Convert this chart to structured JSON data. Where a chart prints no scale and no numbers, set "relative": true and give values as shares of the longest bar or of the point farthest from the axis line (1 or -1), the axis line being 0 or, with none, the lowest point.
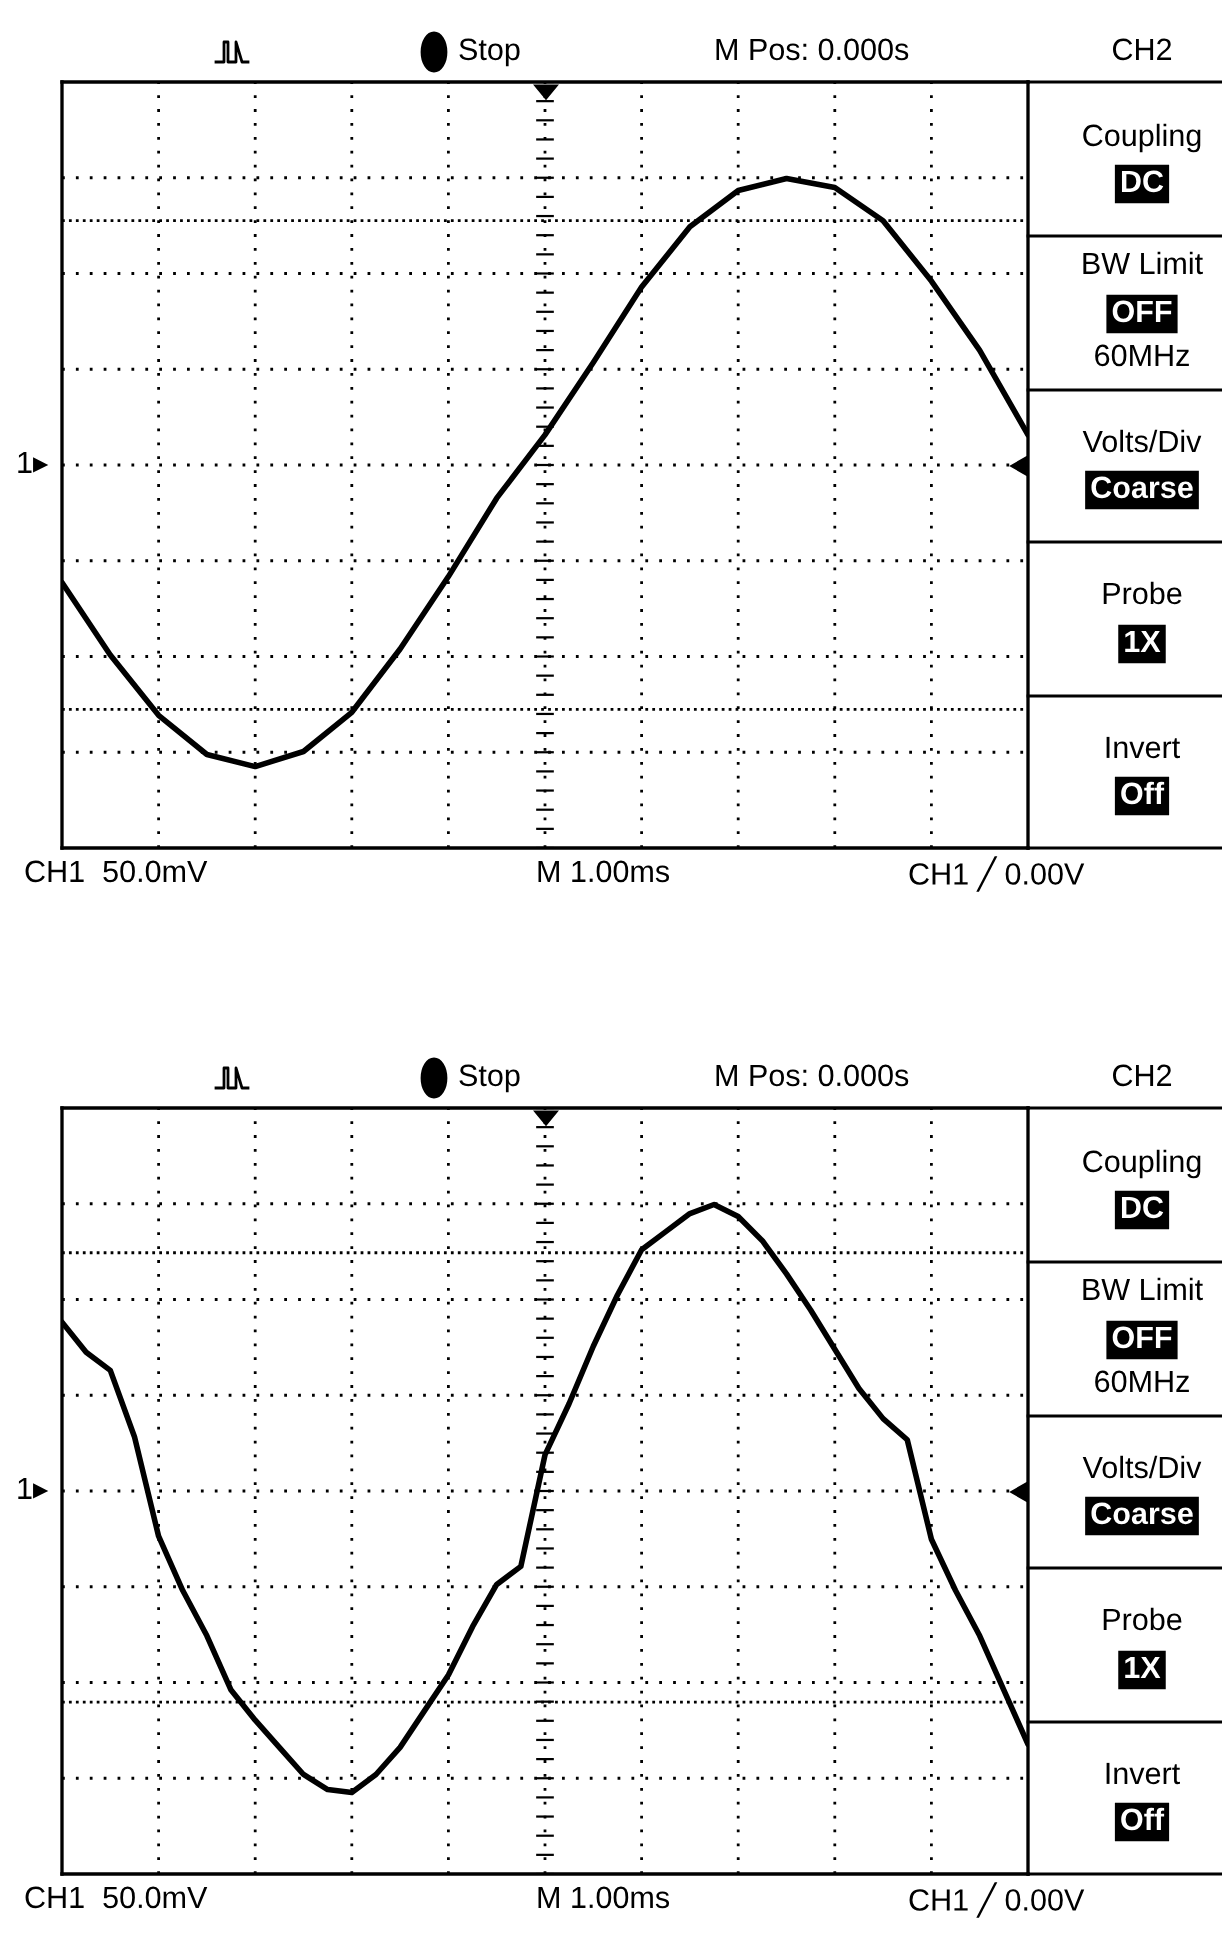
{
  "chart_data": [
    {
      "type": "line",
      "relative": true,
      "grid": true,
      "line_style": "solid",
      "categories": [
        null,
        null,
        null,
        null,
        null,
        null,
        null,
        null,
        null,
        null,
        null,
        null,
        null,
        null,
        null,
        null,
        null,
        null,
        null,
        null,
        null
      ],
      "series": [
        {
          "color": "#000000",
          "values": [
            -0.39,
            -0.63,
            -0.83,
            -0.96,
            -1,
            -0.95,
            -0.82,
            -0.61,
            -0.37,
            -0.11,
            0.1,
            0.34,
            0.59,
            0.79,
            0.91,
            0.95,
            0.92,
            0.81,
            0.61,
            0.38,
            0.1
          ]
        }
      ],
      "ref_lines": [
        {
          "axis": "y",
          "value": 0.81,
          "color": "#000000",
          "line_style": "dotted"
        },
        {
          "axis": "y",
          "value": -0.81,
          "color": "#000000",
          "line_style": "dotted"
        }
      ],
      "annotations": [
        "Stop",
        "M Pos: 0.000s",
        "CH2",
        "Coupling",
        "DC",
        "BW Limit",
        "OFF",
        "60MHz",
        "Volts/Div",
        "Coarse",
        "Probe",
        "1X",
        "Invert",
        "Off",
        "CH1  50.0mV",
        "M 1.00ms",
        "CH1 ╱ 0.00V",
        "1▸"
      ]
    },
    {
      "type": "line",
      "relative": true,
      "grid": true,
      "line_style": "solid",
      "categories": [
        null,
        null,
        null,
        null,
        null,
        null,
        null,
        null,
        null,
        null,
        null,
        null,
        null,
        null,
        null,
        null,
        null,
        null,
        null,
        null,
        null,
        null,
        null,
        null,
        null,
        null,
        null,
        null,
        null,
        null,
        null,
        null,
        null,
        null,
        null,
        null,
        null,
        null,
        null,
        null,
        null
      ],
      "series": [
        {
          "color": "#000000",
          "values": [
            0.56,
            0.46,
            0.4,
            0.18,
            -0.15,
            -0.33,
            -0.48,
            -0.66,
            -0.76,
            -0.85,
            -0.94,
            -0.99,
            -1,
            -0.94,
            -0.85,
            -0.73,
            -0.61,
            -0.45,
            -0.31,
            -0.25,
            0.12,
            0.29,
            0.48,
            0.65,
            0.8,
            0.86,
            0.92,
            0.95,
            0.91,
            0.83,
            0.72,
            0.6,
            0.47,
            0.34,
            0.24,
            0.17,
            -0.16,
            -0.33,
            -0.48,
            -0.66,
            -0.84
          ]
        }
      ],
      "ref_lines": [
        {
          "axis": "y",
          "value": 0.79,
          "color": "#000000",
          "line_style": "dotted"
        },
        {
          "axis": "y",
          "value": -0.7,
          "color": "#000000",
          "line_style": "dotted"
        }
      ],
      "annotations": [
        "Stop",
        "M Pos: 0.000s",
        "CH2",
        "Coupling",
        "DC",
        "BW Limit",
        "OFF",
        "60MHz",
        "Volts/Div",
        "Coarse",
        "Probe",
        "1X",
        "Invert",
        "Off",
        "CH1  50.0mV",
        "M 1.00ms",
        "CH1 ╱ 0.00V",
        "1▸"
      ]
    }
  ]
}
